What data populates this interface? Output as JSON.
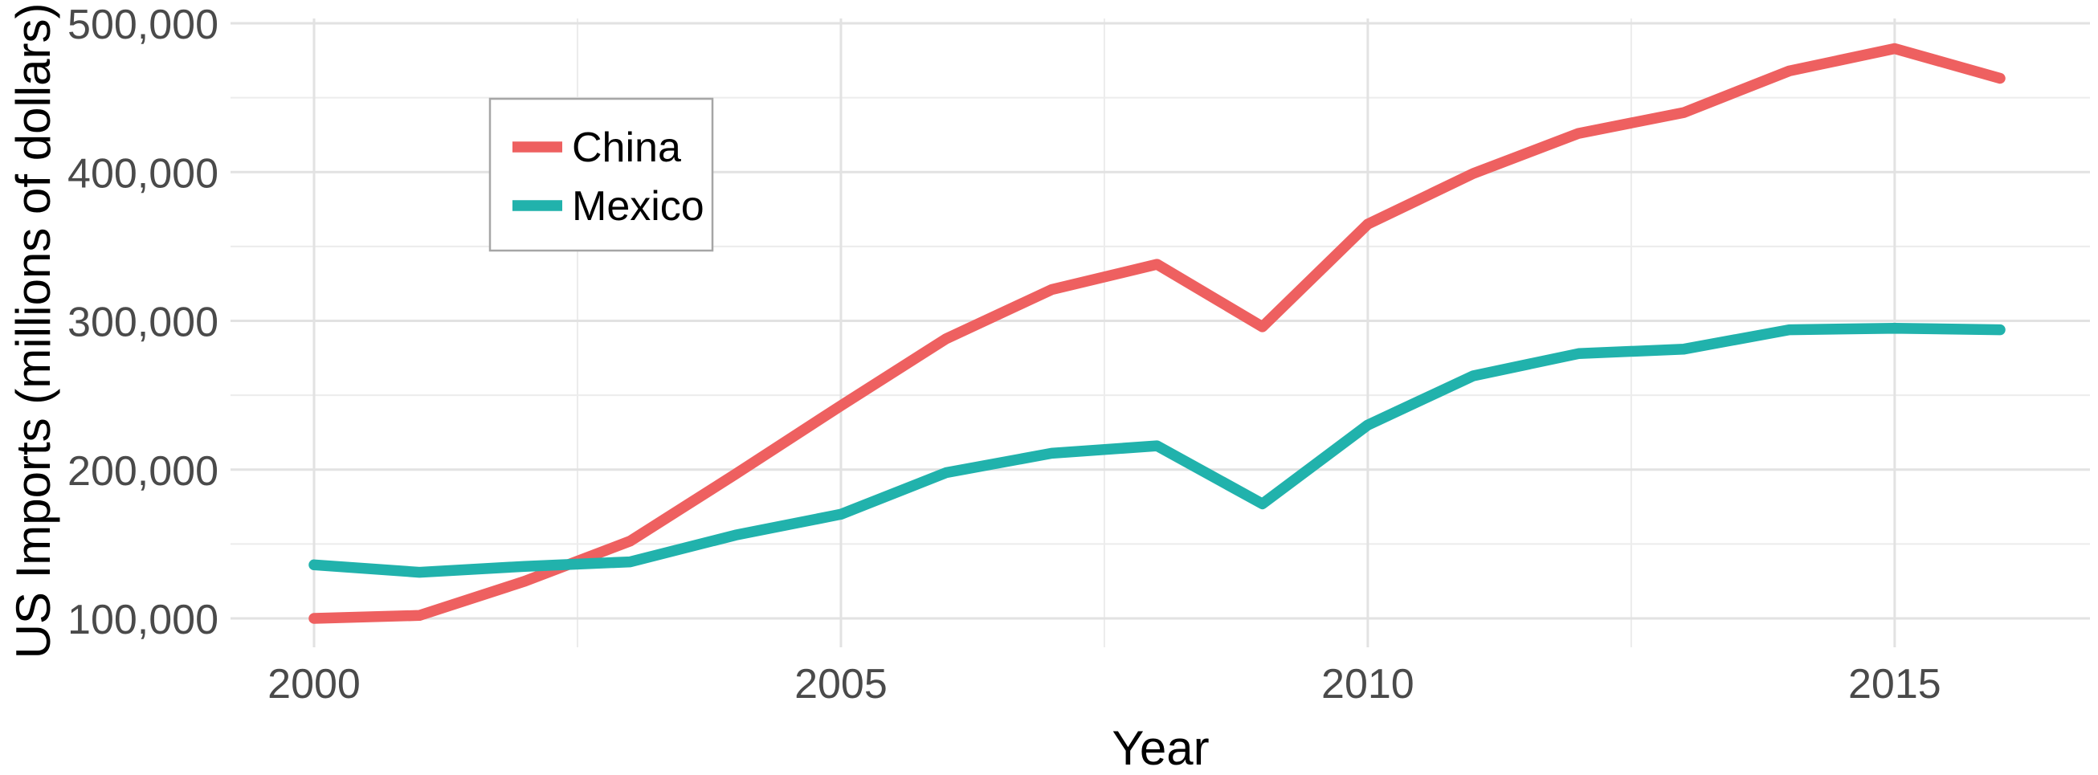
{
  "chart_data": {
    "type": "line",
    "title": "",
    "xlabel": "Year",
    "ylabel": "US Imports (millions of dollars)",
    "x": [
      2000,
      2001,
      2002,
      2003,
      2004,
      2005,
      2006,
      2007,
      2008,
      2009,
      2010,
      2011,
      2012,
      2013,
      2014,
      2015,
      2016
    ],
    "series": [
      {
        "name": "China",
        "color": "#ee6060",
        "values": [
          100000,
          102000,
          125000,
          152000,
          197000,
          243000,
          288000,
          321000,
          338000,
          296000,
          365000,
          399000,
          426000,
          440000,
          468000,
          483000,
          463000
        ]
      },
      {
        "name": "Mexico",
        "color": "#21b2ac",
        "values": [
          136000,
          131000,
          135000,
          138000,
          156000,
          170000,
          198000,
          211000,
          216000,
          177000,
          230000,
          263000,
          278000,
          281000,
          294000,
          295000,
          294000
        ]
      }
    ],
    "x_ticks": [
      2000,
      2005,
      2010,
      2015
    ],
    "x_minor_ticks": [
      2002.5,
      2007.5,
      2012.5
    ],
    "y_ticks": [
      100000,
      200000,
      300000,
      400000,
      500000
    ],
    "y_minor_ticks": [
      150000,
      250000,
      350000,
      450000
    ],
    "xlim": [
      1999.2,
      2016.8
    ],
    "ylim": [
      81000,
      502000
    ],
    "grid": "major+minor",
    "legend_position": "inside-top-left"
  }
}
